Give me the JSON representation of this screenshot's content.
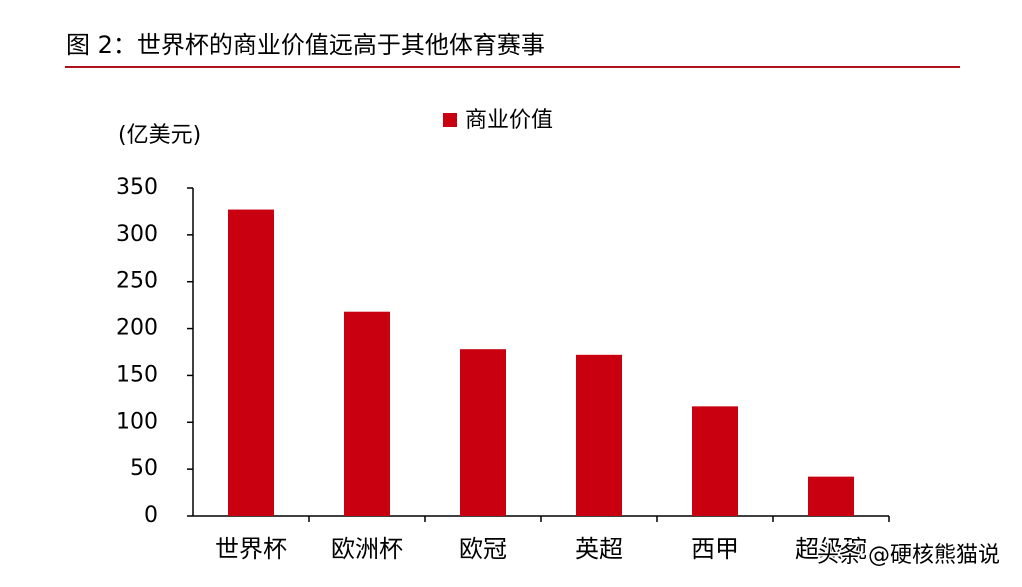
{
  "chart_data": {
    "type": "bar",
    "title": "图 2：世界杯的商业价值远高于其他体育赛事",
    "y_label": "(亿美元)",
    "categories": [
      "世界杯",
      "欧洲杯",
      "欧冠",
      "英超",
      "西甲",
      "超级碗"
    ],
    "series": [
      {
        "name": "商业价值",
        "color": "#c8000f",
        "values": [
          327,
          218,
          178,
          172,
          117,
          42
        ]
      }
    ],
    "ylim": [
      0,
      350
    ],
    "yticks": [
      0,
      50,
      100,
      150,
      200,
      250,
      300,
      350
    ],
    "grid": false,
    "legend": "top",
    "watermark": "头条 @硬核熊猫说"
  }
}
